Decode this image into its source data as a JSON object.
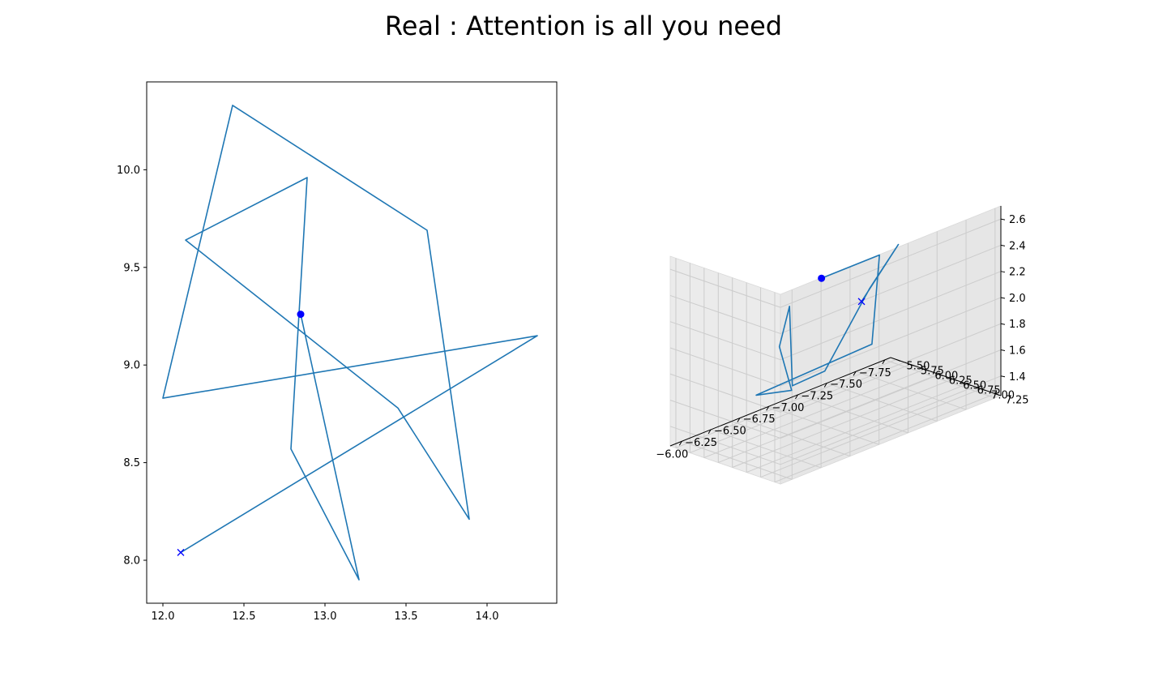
{
  "title": "Real : Attention is all you need",
  "colors": {
    "line": "#1f77b4",
    "marker": "#0000ff",
    "pane": "#f2f2f2",
    "pane_edge": "#d9d9d9",
    "grid": "#cccccc"
  },
  "chart_data": [
    {
      "type": "line",
      "projection": "2d",
      "xlim": [
        11.9,
        14.43
      ],
      "ylim": [
        7.78,
        10.45
      ],
      "xticks": [
        12.0,
        12.5,
        13.0,
        13.5,
        14.0
      ],
      "yticks": [
        8.0,
        8.5,
        9.0,
        9.5,
        10.0
      ],
      "x": [
        12.11,
        14.31,
        12.0,
        12.43,
        13.63,
        13.89,
        13.45,
        12.14,
        12.89,
        12.79,
        13.21,
        12.85
      ],
      "y": [
        8.04,
        9.15,
        8.83,
        10.33,
        9.69,
        8.21,
        8.78,
        9.64,
        9.96,
        8.57,
        7.9,
        9.26
      ],
      "start_marker": "x",
      "end_marker": "o",
      "grid": false
    },
    {
      "type": "line",
      "projection": "3d",
      "xlim": [
        -7.8,
        -5.9
      ],
      "ylim": [
        5.4,
        7.35
      ],
      "zlim": [
        1.25,
        2.7
      ],
      "xticks": [
        -7.75,
        -7.5,
        -7.25,
        -7.0,
        -6.75,
        -6.5,
        -6.25,
        -6.0
      ],
      "yticks": [
        5.5,
        5.75,
        6.0,
        6.25,
        6.5,
        6.75,
        7.0,
        7.25
      ],
      "zticks": [
        1.4,
        1.6,
        1.8,
        2.0,
        2.2,
        2.4,
        2.6
      ],
      "x": [
        -7.5,
        -7.55,
        -7.3,
        -6.55,
        -6.1,
        -6.1,
        -6.5,
        -6.8,
        -6.3,
        -7.2,
        -6.9,
        -6.4
      ],
      "y": [
        5.5,
        6.05,
        6.05,
        6.8,
        7.15,
        7.1,
        6.1,
        5.7,
        6.1,
        6.3,
        7.05,
        7.05
      ],
      "z": [
        1.8,
        2.3,
        2.05,
        1.8,
        1.9,
        2.5,
        1.9,
        1.4,
        1.6,
        1.7,
        2.6,
        2.6
      ],
      "start_marker": "x",
      "end_marker": "o",
      "grid": true
    }
  ]
}
